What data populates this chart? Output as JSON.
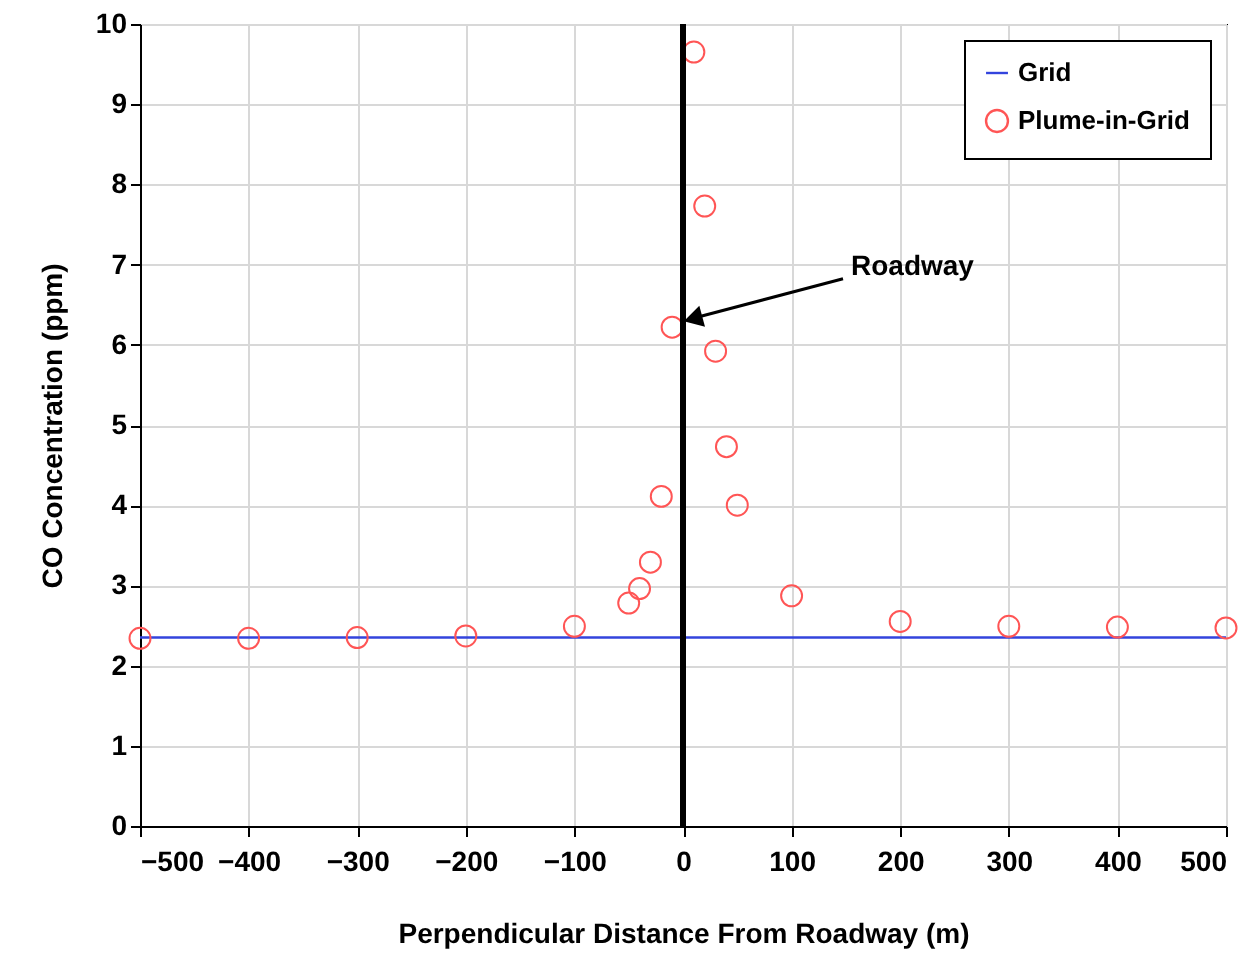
{
  "chart_data": {
    "type": "scatter",
    "xlabel": "Perpendicular Distance From Roadway (m)",
    "ylabel": "CO Concentration (ppm)",
    "xlim": [
      -500,
      500
    ],
    "xticks": [
      -500,
      -400,
      -300,
      -200,
      -100,
      0,
      100,
      200,
      300,
      400,
      500
    ],
    "ylim": [
      0,
      10
    ],
    "yticks": [
      0,
      1,
      2,
      3,
      4,
      5,
      6,
      7,
      8,
      9,
      10
    ],
    "grid": true,
    "legend": "top right",
    "series": [
      {
        "name": "Grid",
        "type": "line",
        "color": "#3344dd",
        "x": [
          -500,
          500
        ],
        "values": [
          2.35,
          2.35
        ]
      },
      {
        "name": "Plume-in-Grid",
        "type": "scatter",
        "marker": "circle",
        "color": "#ff5555",
        "x": [
          -500,
          -400,
          -300,
          -200,
          -100,
          -50,
          -40,
          -30,
          -20,
          -10,
          10,
          20,
          30,
          40,
          50,
          100,
          200,
          300,
          400,
          500
        ],
        "values": [
          2.34,
          2.34,
          2.35,
          2.37,
          2.49,
          2.78,
          2.96,
          3.29,
          4.11,
          6.22,
          9.65,
          7.73,
          5.92,
          4.73,
          4.0,
          2.87,
          2.55,
          2.49,
          2.48,
          2.47
        ]
      }
    ],
    "ref_lines": [
      {
        "axis": "x",
        "value": 0,
        "color": "#000000"
      }
    ],
    "annotations": [
      {
        "text": "Roadway",
        "x": 0,
        "y": 6.3
      }
    ]
  }
}
